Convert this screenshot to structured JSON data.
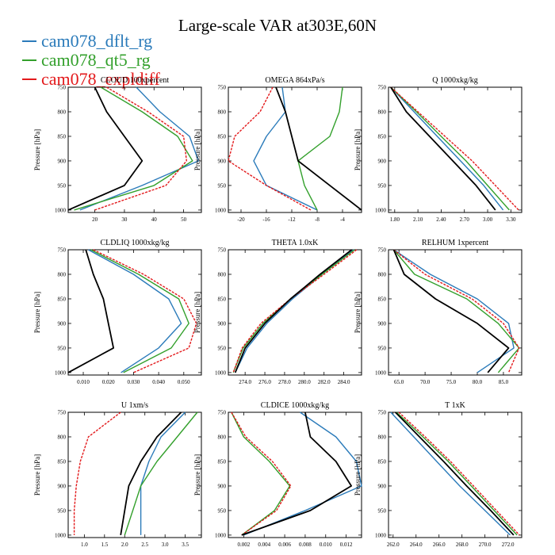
{
  "title": "Large-scale VAR at303E,60N",
  "legend": [
    {
      "name": "cam078_dflt_rg",
      "color": "#2b7bba"
    },
    {
      "name": "cam078_qt5_rg",
      "color": "#33a02c"
    },
    {
      "name": "cam078_expldiff",
      "color": "#e31a1c"
    }
  ],
  "obs_color": "#000000",
  "y_axis": {
    "label": "Pressure [hPa]",
    "ticks": [
      750,
      800,
      850,
      900,
      950,
      1000
    ],
    "range": [
      750,
      1005
    ]
  },
  "chart_data": [
    {
      "type": "line",
      "title": "CLOUD 100xpercent",
      "xlim": [
        11,
        56
      ],
      "xticks": [
        "20",
        "30",
        "40",
        "50"
      ],
      "xtick_values": [
        20,
        30,
        40,
        50
      ],
      "pressure": [
        750,
        800,
        850,
        900,
        950,
        1000
      ],
      "series": [
        {
          "name": "cam078_dflt_rg",
          "values": [
            34,
            42,
            52,
            55,
            36,
            15
          ]
        },
        {
          "name": "cam078_qt5_rg",
          "values": [
            22,
            36,
            48,
            53,
            40,
            13
          ]
        },
        {
          "name": "cam078_expldiff",
          "values": [
            24,
            38,
            50,
            51,
            44,
            20
          ]
        },
        {
          "name": "obs",
          "values": [
            20,
            24,
            30,
            36,
            30,
            11
          ]
        }
      ]
    },
    {
      "type": "line",
      "title": "OMEGA 864xPa/s",
      "xlim": [
        -22,
        -1
      ],
      "xticks": [
        "-20",
        "-16",
        "-12",
        "-8",
        "-4"
      ],
      "xtick_values": [
        -20,
        -16,
        -12,
        -8,
        -4
      ],
      "pressure": [
        750,
        800,
        850,
        900,
        950,
        1000
      ],
      "series": [
        {
          "name": "cam078_dflt_rg",
          "values": [
            -13.5,
            -13,
            -16,
            -18,
            -16,
            -8
          ]
        },
        {
          "name": "cam078_qt5_rg",
          "values": [
            -4,
            -4.5,
            -6,
            -11,
            -10,
            -8
          ]
        },
        {
          "name": "cam078_expldiff",
          "values": [
            -15,
            -17,
            -21,
            -22,
            -16,
            -9
          ]
        },
        {
          "name": "obs",
          "values": [
            -14.5,
            -13,
            -12,
            -11,
            -6,
            -1
          ]
        }
      ]
    },
    {
      "type": "line",
      "title": "Q 1000xkg/kg",
      "xlim": [
        1.72,
        3.44
      ],
      "xticks": [
        "1.80",
        "2.10",
        "2.40",
        "2.70",
        "3.00",
        "3.30"
      ],
      "xtick_values": [
        1.8,
        2.1,
        2.4,
        2.7,
        3.0,
        3.3
      ],
      "pressure": [
        750,
        800,
        850,
        900,
        950,
        1000
      ],
      "series": [
        {
          "name": "cam078_dflt_rg",
          "values": [
            1.75,
            2.05,
            2.35,
            2.65,
            2.95,
            3.2
          ]
        },
        {
          "name": "cam078_qt5_rg",
          "values": [
            1.75,
            2.08,
            2.4,
            2.72,
            3.0,
            3.28
          ]
        },
        {
          "name": "cam078_expldiff",
          "values": [
            1.75,
            2.1,
            2.45,
            2.8,
            3.1,
            3.4
          ]
        },
        {
          "name": "obs",
          "values": [
            1.75,
            1.95,
            2.25,
            2.55,
            2.85,
            3.1
          ]
        }
      ]
    },
    {
      "type": "line",
      "title": "CLDLIQ 1000xkg/kg",
      "xlim": [
        0.004,
        0.057
      ],
      "xticks": [
        "0.010",
        "0.020",
        "0.030",
        "0.040",
        "0.050"
      ],
      "xtick_values": [
        0.01,
        0.02,
        0.03,
        0.04,
        0.05
      ],
      "pressure": [
        750,
        800,
        850,
        900,
        950,
        1000
      ],
      "series": [
        {
          "name": "cam078_dflt_rg",
          "values": [
            0.012,
            0.03,
            0.044,
            0.049,
            0.04,
            0.025
          ]
        },
        {
          "name": "cam078_qt5_rg",
          "values": [
            0.013,
            0.032,
            0.048,
            0.052,
            0.045,
            0.026
          ]
        },
        {
          "name": "cam078_expldiff",
          "values": [
            0.014,
            0.034,
            0.05,
            0.055,
            0.052,
            0.03
          ]
        },
        {
          "name": "obs",
          "values": [
            0.011,
            0.014,
            0.018,
            0.02,
            0.022,
            0.004
          ]
        }
      ]
    },
    {
      "type": "line",
      "title": "THETA 1.0xK",
      "xlim": [
        272.3,
        285.8
      ],
      "xticks": [
        "274.0",
        "276.0",
        "278.0",
        "280.0",
        "282.0",
        "284.0"
      ],
      "xtick_values": [
        274,
        276,
        278,
        280,
        282,
        284
      ],
      "pressure": [
        750,
        800,
        850,
        900,
        950,
        1000
      ],
      "series": [
        {
          "name": "cam078_dflt_rg",
          "values": [
            285,
            281.8,
            278.8,
            276.2,
            274.2,
            273.0
          ]
        },
        {
          "name": "cam078_qt5_rg",
          "values": [
            285.1,
            281.8,
            278.6,
            275.8,
            273.8,
            272.8
          ]
        },
        {
          "name": "cam078_expldiff",
          "values": [
            285.3,
            282,
            278.6,
            275.6,
            273.7,
            272.8
          ]
        },
        {
          "name": "obs",
          "values": [
            284.8,
            281.6,
            278.6,
            276.0,
            274.0,
            273.0
          ]
        }
      ]
    },
    {
      "type": "line",
      "title": "RELHUM 1xpercent",
      "xlim": [
        63,
        88.5
      ],
      "xticks": [
        "65.0",
        "70.0",
        "75.0",
        "80.0",
        "85.0"
      ],
      "xtick_values": [
        65,
        70,
        75,
        80,
        85
      ],
      "pressure": [
        750,
        800,
        850,
        900,
        950,
        1000
      ],
      "series": [
        {
          "name": "cam078_dflt_rg",
          "values": [
            64,
            71,
            80,
            86,
            87,
            80
          ]
        },
        {
          "name": "cam078_qt5_rg",
          "values": [
            64,
            68,
            78,
            84,
            88,
            84
          ]
        },
        {
          "name": "cam078_expldiff",
          "values": [
            64,
            70,
            79,
            85,
            88,
            86
          ]
        },
        {
          "name": "obs",
          "values": [
            64,
            66,
            72,
            80,
            86,
            82
          ]
        }
      ]
    },
    {
      "type": "line",
      "title": "U 1xm/s",
      "xlim": [
        0.6,
        3.9
      ],
      "xticks": [
        "1.0",
        "1.5",
        "2.0",
        "2.5",
        "3.0",
        "3.5"
      ],
      "xtick_values": [
        1.0,
        1.5,
        2.0,
        2.5,
        3.0,
        3.5
      ],
      "pressure": [
        750,
        800,
        850,
        900,
        950,
        1000
      ],
      "series": [
        {
          "name": "cam078_dflt_rg",
          "values": [
            3.5,
            2.9,
            2.6,
            2.4,
            2.4,
            2.4
          ]
        },
        {
          "name": "cam078_qt5_rg",
          "values": [
            3.8,
            3.3,
            2.8,
            2.4,
            2.2,
            2.0
          ]
        },
        {
          "name": "cam078_expldiff",
          "values": [
            1.9,
            1.1,
            0.9,
            0.8,
            0.75,
            0.75
          ]
        },
        {
          "name": "obs",
          "values": [
            3.4,
            2.8,
            2.4,
            2.1,
            2.0,
            1.9
          ]
        }
      ]
    },
    {
      "type": "line",
      "title": "CLDICE 1000xkg/kg",
      "xlim": [
        0.0005,
        0.0135
      ],
      "xticks": [
        "0.002",
        "0.004",
        "0.006",
        "0.008",
        "0.010",
        "0.012"
      ],
      "xtick_values": [
        0.002,
        0.004,
        0.006,
        0.008,
        0.01,
        0.012
      ],
      "pressure": [
        750,
        800,
        850,
        900,
        950,
        1000
      ],
      "series": [
        {
          "name": "cam078_dflt_rg",
          "values": [
            0.0075,
            0.011,
            0.013,
            0.0135,
            0.008,
            0.002
          ]
        },
        {
          "name": "cam078_qt5_rg",
          "values": [
            0.0008,
            0.002,
            0.0045,
            0.0065,
            0.005,
            0.0018
          ]
        },
        {
          "name": "cam078_expldiff",
          "values": [
            0.0008,
            0.0022,
            0.0048,
            0.0066,
            0.0052,
            0.0018
          ]
        },
        {
          "name": "obs",
          "values": [
            0.008,
            0.0085,
            0.011,
            0.0125,
            0.0085,
            0.0018
          ]
        }
      ]
    },
    {
      "type": "line",
      "title": "T 1xK",
      "xlim": [
        261.6,
        273.2
      ],
      "xticks": [
        "262.0",
        "264.0",
        "266.0",
        "268.0",
        "270.0",
        "272.0"
      ],
      "xtick_values": [
        262,
        264,
        266,
        268,
        270,
        272
      ],
      "pressure": [
        750,
        800,
        850,
        900,
        950,
        1000
      ],
      "series": [
        {
          "name": "cam078_dflt_rg",
          "values": [
            261.8,
            263.8,
            265.8,
            267.8,
            270.0,
            272.2
          ]
        },
        {
          "name": "cam078_qt5_rg",
          "values": [
            262.3,
            264.6,
            266.8,
            268.8,
            270.8,
            272.8
          ]
        },
        {
          "name": "cam078_expldiff",
          "values": [
            262.5,
            264.8,
            267.0,
            269.0,
            271.0,
            273.0
          ]
        },
        {
          "name": "obs",
          "values": [
            262.2,
            264.3,
            266.4,
            268.4,
            270.5,
            272.5
          ]
        }
      ]
    }
  ]
}
